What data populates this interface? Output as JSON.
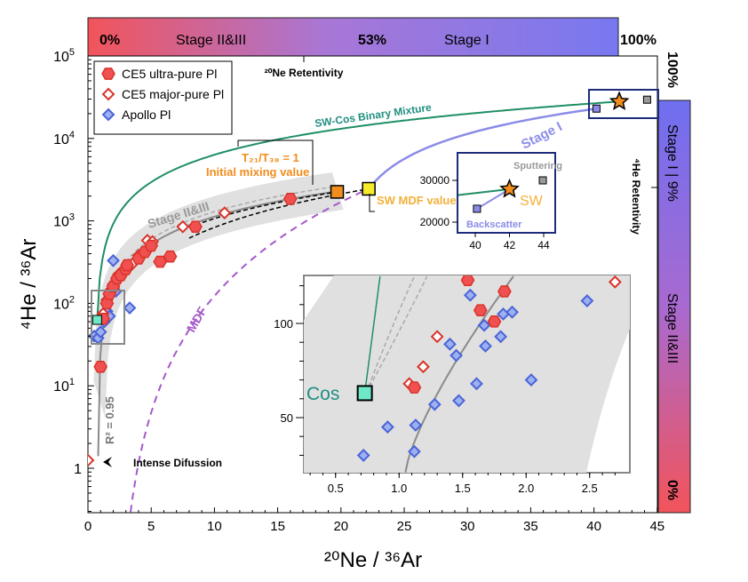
{
  "chart_data": {
    "type": "scatter",
    "xlabel": "²⁰Ne / ³⁶Ar",
    "ylabel": "⁴He / ³⁶Ar",
    "xlim": [
      0,
      45
    ],
    "ylim": [
      0.29,
      100000
    ],
    "yscale": "log",
    "x_ticks": [
      "0",
      "5",
      "10",
      "15",
      "20",
      "25",
      "30",
      "35",
      "40",
      "45"
    ],
    "y_ticks": [
      {
        "base": "1",
        "exp": ""
      },
      {
        "base": "10",
        "exp": "1"
      },
      {
        "base": "10",
        "exp": "2"
      },
      {
        "base": "10",
        "exp": "3"
      },
      {
        "base": "10",
        "exp": "4"
      },
      {
        "base": "10",
        "exp": "5"
      }
    ],
    "legend": {
      "placement": "top-left",
      "entries": [
        "CE5 ultra-pure Pl",
        "CE5 major-pure Pl",
        "Apollo Pl"
      ]
    },
    "colors": {
      "ultra": "#f0504f",
      "major": "#d9342b",
      "apollo": "#4a64d8",
      "apollo_fill": "#9db0f0",
      "mixture": "#1f8f64",
      "stage1": "#8c8ce8",
      "mdf": "#a659c9",
      "trend": "#8a8a8a",
      "orange": "#f28c1c",
      "yellow": "#f5ea2b",
      "cos": "#6fe8c8"
    },
    "series": [
      {
        "name": "CE5 ultra-pure Pl",
        "points": [
          [
            1,
            17
          ],
          [
            1.2,
            65
          ],
          [
            1.5,
            100
          ],
          [
            1.7,
            130
          ],
          [
            2,
            160
          ],
          [
            2.3,
            200
          ],
          [
            2.6,
            220
          ],
          [
            3,
            260
          ],
          [
            3.1,
            290
          ],
          [
            4,
            350
          ],
          [
            4.5,
            420
          ],
          [
            5,
            500
          ],
          [
            5.7,
            320
          ],
          [
            6.5,
            370
          ],
          [
            8.5,
            850
          ],
          [
            16,
            1850
          ]
        ]
      },
      {
        "name": "CE5 major-pure Pl",
        "points": [
          [
            0,
            1.25
          ],
          [
            1.2,
            75
          ],
          [
            1.5,
            110
          ],
          [
            2,
            170
          ],
          [
            2.5,
            230
          ],
          [
            3.5,
            300
          ],
          [
            4,
            380
          ],
          [
            4.7,
            580
          ],
          [
            5.1,
            560
          ],
          [
            7.5,
            850
          ],
          [
            10.8,
            1250
          ]
        ]
      },
      {
        "name": "Apollo Pl",
        "points": [
          [
            0.5,
            40
          ],
          [
            0.8,
            38
          ],
          [
            1,
            45
          ],
          [
            1.3,
            60
          ],
          [
            1.5,
            80
          ],
          [
            1.7,
            70
          ],
          [
            2,
            330
          ],
          [
            2.2,
            140
          ],
          [
            3.3,
            88
          ]
        ]
      }
    ],
    "endmembers": {
      "cos": [
        0.73,
        63
      ],
      "initial_mixing": [
        19.7,
        2250
      ],
      "sw_mdf": [
        22.2,
        2450
      ],
      "sw": [
        42,
        28000
      ],
      "sputtering": [
        44.2,
        29500
      ],
      "backscatter": [
        40.2,
        23000
      ]
    },
    "inset": {
      "xlim": [
        0.25,
        2.81
      ],
      "ylim": [
        21,
        125
      ],
      "x_ticks": [
        "0.5",
        "1.0",
        "1.5",
        "2.0",
        "2.5"
      ],
      "y_ticks": [
        "50",
        "100"
      ],
      "ultra": [
        [
          1.54,
          123
        ],
        [
          1.83,
          117
        ],
        [
          1.64,
          107
        ],
        [
          1.75,
          101
        ],
        [
          1.12,
          66
        ]
      ],
      "major": [
        [
          1.3,
          93
        ],
        [
          1.19,
          77
        ],
        [
          1.08,
          68
        ],
        [
          2.7,
          122
        ]
      ],
      "apollo": [
        [
          1.56,
          115
        ],
        [
          1.82,
          105
        ],
        [
          1.89,
          106
        ],
        [
          1.67,
          99
        ],
        [
          1.8,
          93
        ],
        [
          1.4,
          89
        ],
        [
          1.45,
          83
        ],
        [
          1.68,
          88
        ],
        [
          2.48,
          112
        ],
        [
          2.04,
          70
        ],
        [
          1.61,
          68
        ],
        [
          1.47,
          59
        ],
        [
          1.28,
          57
        ],
        [
          0.91,
          45
        ],
        [
          1.13,
          46
        ],
        [
          0.72,
          30
        ],
        [
          1.12,
          32
        ]
      ],
      "cos_label": "Cos"
    },
    "sw_inset": {
      "x_ticks": [
        "40",
        "42",
        "44"
      ],
      "y_ticks": [
        "20000",
        "30000"
      ],
      "labels": {
        "sputtering": "Sputtering",
        "sw": "SW",
        "backscatter": "Backscatter"
      }
    },
    "top_bar": {
      "left": "0%",
      "stage23": "Stage II&III",
      "mid": "53%",
      "stage1": "Stage I",
      "right": "100%",
      "axis_title": "²⁰Ne Retentivity"
    },
    "right_bar": {
      "top": "100%",
      "stage1": "Stage I | 9%",
      "stage23": "Stage II&III",
      "bottom": "0%",
      "axis_title": "⁴He Retentivity"
    },
    "annotations": {
      "mixture": "SW-Cos Binary Mixture",
      "stage1": "Stage I",
      "stage23": "Stage II&III",
      "mdf": "MDF",
      "ratio": "T₂₁/T₃₈ = 1",
      "initial": "Initial mixing value",
      "sw_mdf": "SW MDF value",
      "r2": "R² = 0.95",
      "diffusion": "Intense Difussion"
    }
  }
}
